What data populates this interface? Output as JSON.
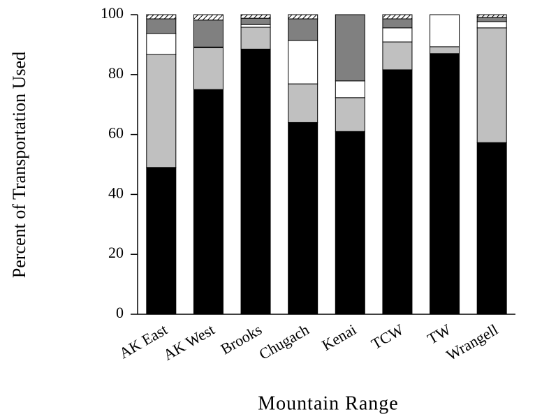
{
  "chart_data": {
    "type": "stacked-bar",
    "x_label": "Mountain Range",
    "y_label": "Percent of Transportation Used",
    "categories": [
      "AK East",
      "AK West",
      "Brooks",
      "Chugach",
      "Kenai",
      "TCW",
      "TW",
      "Wrangell"
    ],
    "series": [
      {
        "color": "#000000",
        "values": [
          49,
          75,
          88.5,
          64,
          61,
          81.6,
          87,
          57.3
        ]
      },
      {
        "color": "#c0c0c0",
        "values": [
          37.7,
          14,
          7.3,
          12.9,
          11.3,
          9.3,
          2.3,
          38.3
        ]
      },
      {
        "color": "#ffffff",
        "values": [
          7,
          0.2,
          0.9,
          14.5,
          5.6,
          4.7,
          10.7,
          2.1
        ]
      },
      {
        "color": "#808080",
        "values": [
          4.9,
          9,
          2.1,
          7.2,
          22.1,
          3,
          0,
          1.4
        ]
      },
      {
        "color": "#ffffff",
        "hatch": true,
        "values": [
          1.4,
          1.8,
          1.2,
          1.4,
          0,
          1.4,
          0,
          0.9
        ]
      }
    ],
    "ylim": [
      0,
      100
    ],
    "yticks": [
      0,
      20,
      40,
      60,
      80,
      100
    ],
    "grid": false
  }
}
